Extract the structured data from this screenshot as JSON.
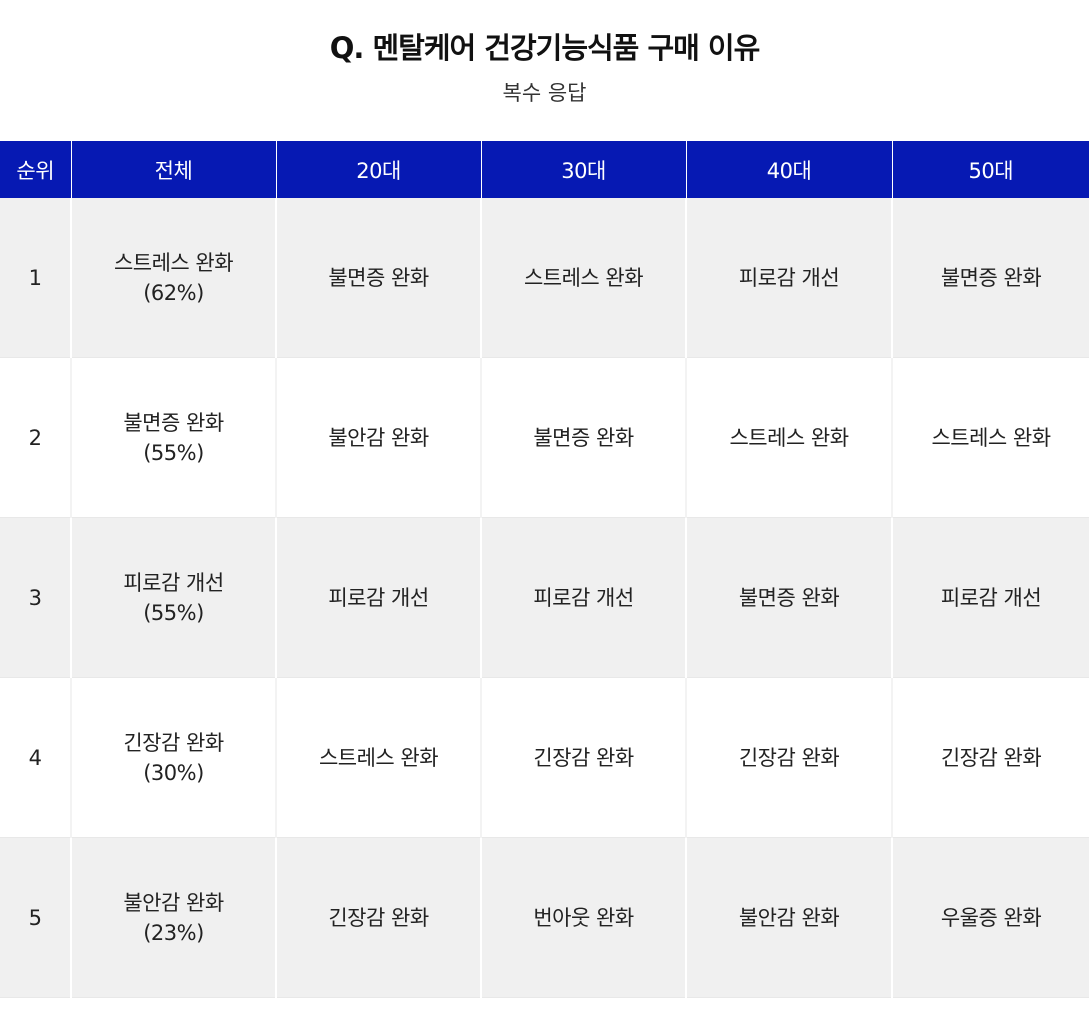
{
  "title": "Q. 멘탈케어 건강기능식품 구매 이유",
  "subtitle": "복수 응답",
  "colors": {
    "header_bg": "#0619b3",
    "header_text": "#ffffff",
    "row_alt_bg": "#f0f0f0"
  },
  "table": {
    "headers": [
      "순위",
      "전체",
      "20대",
      "30대",
      "40대",
      "50대"
    ],
    "rows": [
      {
        "rank": "1",
        "overall_name": "스트레스 완화",
        "overall_pct": "(62%)",
        "age20": "불면증 완화",
        "age30": "스트레스 완화",
        "age40": "피로감 개선",
        "age50": "불면증 완화"
      },
      {
        "rank": "2",
        "overall_name": "불면증 완화",
        "overall_pct": "(55%)",
        "age20": "불안감 완화",
        "age30": "불면증 완화",
        "age40": "스트레스 완화",
        "age50": "스트레스 완화"
      },
      {
        "rank": "3",
        "overall_name": "피로감 개선",
        "overall_pct": "(55%)",
        "age20": "피로감 개선",
        "age30": "피로감 개선",
        "age40": "불면증 완화",
        "age50": "피로감 개선"
      },
      {
        "rank": "4",
        "overall_name": "긴장감 완화",
        "overall_pct": "(30%)",
        "age20": "스트레스 완화",
        "age30": "긴장감 완화",
        "age40": "긴장감 완화",
        "age50": "긴장감 완화"
      },
      {
        "rank": "5",
        "overall_name": "불안감 완화",
        "overall_pct": "(23%)",
        "age20": "긴장감 완화",
        "age30": "번아웃 완화",
        "age40": "불안감 완화",
        "age50": "우울증 완화"
      }
    ]
  }
}
